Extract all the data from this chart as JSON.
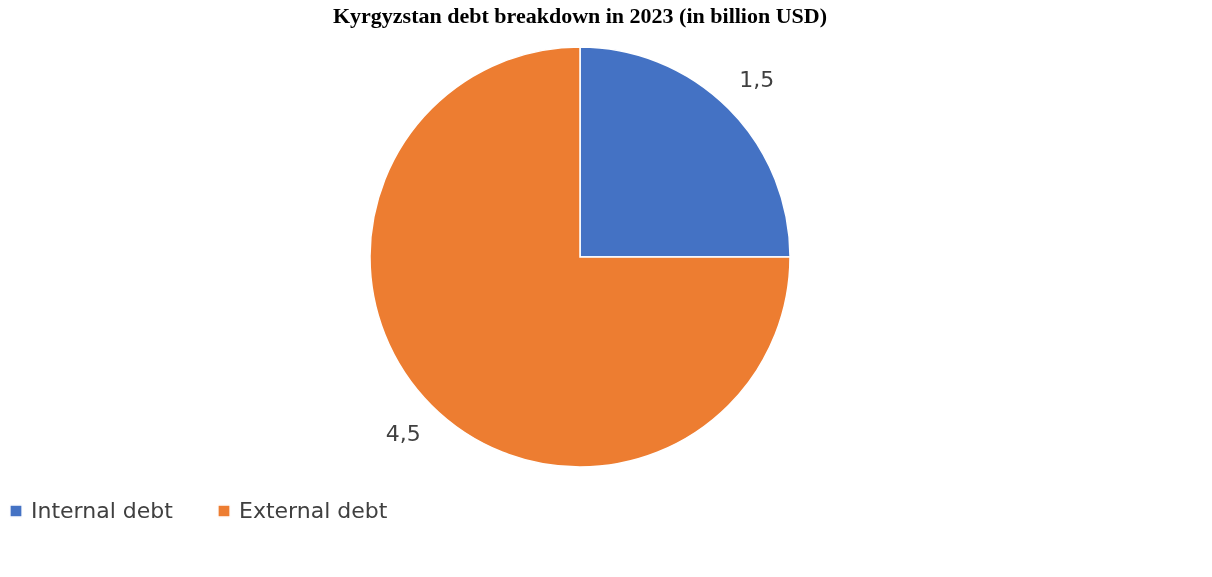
{
  "chart_data": {
    "type": "pie",
    "title": "Kyrgyzstan debt breakdown in 2023 (in billion USD)",
    "categories": [
      "Internal debt",
      "External debt"
    ],
    "values": [
      1.5,
      4.5
    ],
    "colors": [
      "#4472c4",
      "#ed7d31"
    ],
    "value_labels": [
      "1,5",
      "4,5"
    ],
    "legend": "bottom"
  }
}
